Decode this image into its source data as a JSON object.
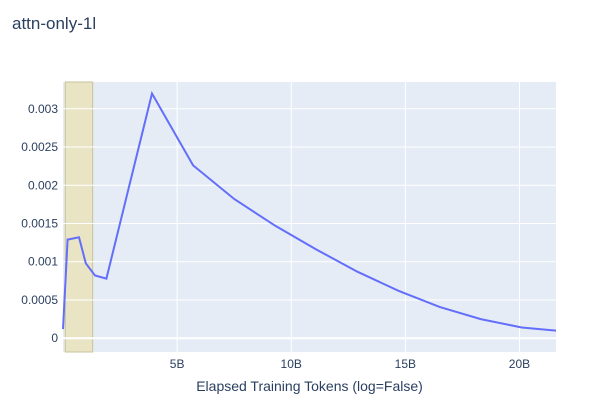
{
  "chart_data": {
    "type": "line",
    "title": "attn-only-1l",
    "xlabel": "Elapsed Training Tokens (log=False)",
    "ylabel": "",
    "xlim": [
      0,
      21600000000
    ],
    "ylim": [
      -0.00018,
      0.00335
    ],
    "x_ticks": [
      {
        "value": 5000000000,
        "label": "5B"
      },
      {
        "value": 10000000000,
        "label": "10B"
      },
      {
        "value": 15000000000,
        "label": "15B"
      },
      {
        "value": 20000000000,
        "label": "20B"
      }
    ],
    "y_ticks": [
      {
        "value": 0,
        "label": "0"
      },
      {
        "value": 0.0005,
        "label": "0.0005"
      },
      {
        "value": 0.001,
        "label": "0.001"
      },
      {
        "value": 0.0015,
        "label": "0.0015"
      },
      {
        "value": 0.002,
        "label": "0.002"
      },
      {
        "value": 0.0025,
        "label": "0.0025"
      },
      {
        "value": 0.003,
        "label": "0.003"
      }
    ],
    "highlight_region": {
      "x0": 100000000,
      "x1": 1300000000,
      "color": "#e8e4c4"
    },
    "grid": true,
    "legend": "none",
    "colors": {
      "line": "#636efa",
      "plot_bg": "#e5ecf6",
      "grid": "#ffffff",
      "text": "#2a3f5f"
    },
    "series": [
      {
        "x": [
          0,
          200000000,
          700000000,
          1000000000,
          1400000000,
          1900000000,
          3900000000,
          5700000000,
          7500000000,
          9300000000,
          11100000000,
          12900000000,
          14700000000,
          16500000000,
          18300000000,
          20100000000,
          21600000000
        ],
        "y": [
          0.00012,
          0.00129,
          0.00132,
          0.00098,
          0.00082,
          0.00078,
          0.0032,
          0.00226,
          0.00182,
          0.00147,
          0.00116,
          0.00087,
          0.00062,
          0.00041,
          0.00025,
          0.00014,
          0.0001
        ]
      }
    ]
  }
}
